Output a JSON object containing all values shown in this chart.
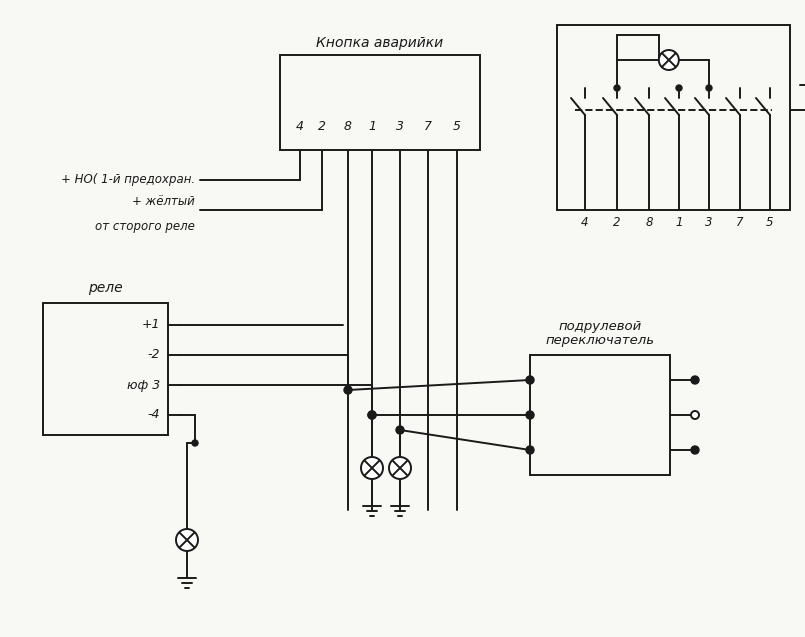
{
  "bg_color": "#f8f8f4",
  "lc": "#1a1a1a",
  "lw": 1.4,
  "title": "Кнопка аварийки",
  "relay_label": "реле",
  "switch_label_1": "подрулевой",
  "switch_label_2": "переключатель",
  "relay_pins": [
    "+1",
    "-2",
    "юф 3",
    "-4"
  ],
  "button_pins": [
    "4",
    "2",
    "8",
    "1",
    "3",
    "7",
    "5"
  ],
  "label_no": "+ НО( 1-й предохран.",
  "label_yellow": "+ жёлтый",
  "label_yellow2": "от сторого реле",
  "fig_w": 8.05,
  "fig_h": 6.37,
  "dpi": 100
}
